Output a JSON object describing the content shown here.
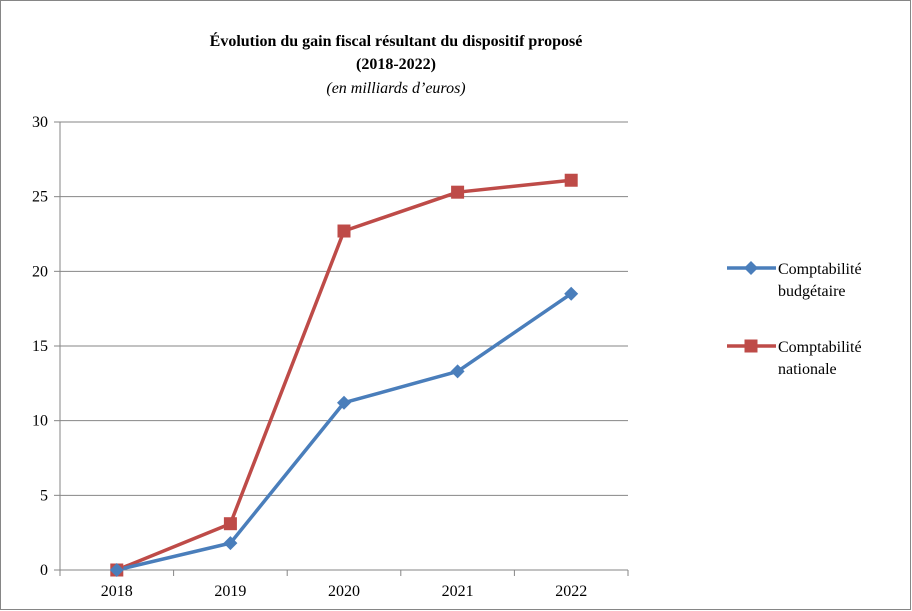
{
  "chart_data": {
    "type": "line",
    "title": "Évolution du gain fiscal résultant du dispositif proposé",
    "title_line2": "(2018-2022)",
    "subtitle": "(en milliards d’euros)",
    "xlabel": "",
    "ylabel": "",
    "categories": [
      "2018",
      "2019",
      "2020",
      "2021",
      "2022"
    ],
    "ylim": [
      0,
      30
    ],
    "yticks": [
      0,
      5,
      10,
      15,
      20,
      25,
      30
    ],
    "grid": true,
    "legend_position": "right",
    "series": [
      {
        "name_lines": [
          "Comptabilité",
          "budgétaire"
        ],
        "values": [
          0,
          1.8,
          11.2,
          13.3,
          18.5
        ],
        "color": "#4a7ebb",
        "marker": "diamond"
      },
      {
        "name_lines": [
          "Comptabilité",
          "nationale"
        ],
        "values": [
          0,
          3.1,
          22.7,
          25.3,
          26.1
        ],
        "color": "#be4b48",
        "marker": "square"
      }
    ]
  }
}
